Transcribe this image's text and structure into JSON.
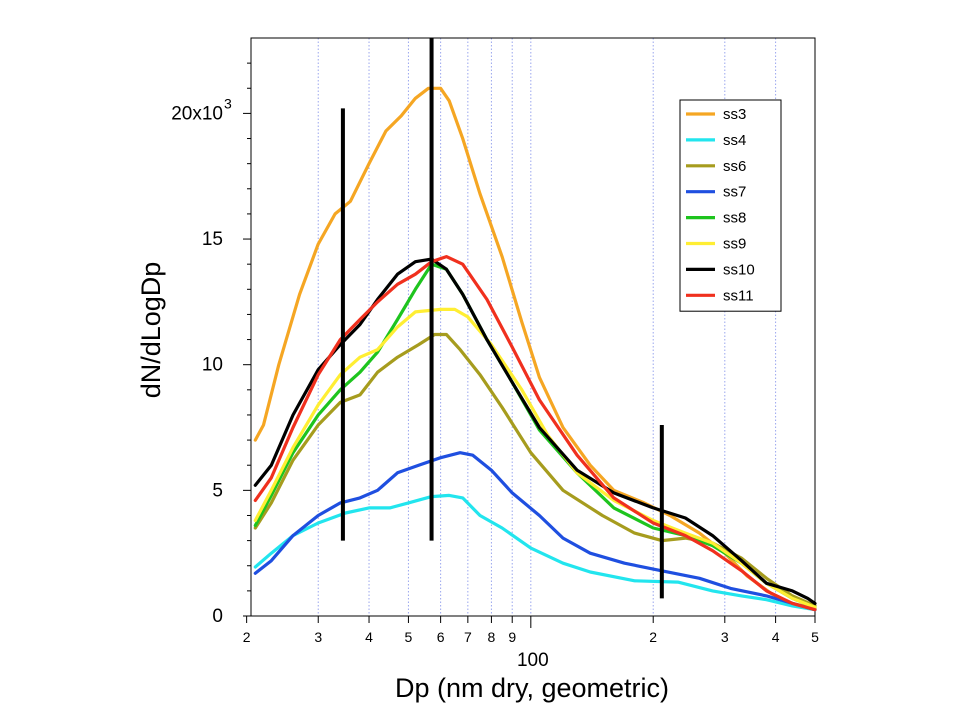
{
  "chart_data": {
    "type": "line",
    "xlabel": "Dp (nm dry, geometric)",
    "ylabel": "dN/dLogDp",
    "x_scale": "log",
    "xlim": [
      20.5,
      500
    ],
    "ylim": [
      0,
      23000
    ],
    "x_ticks": [
      {
        "value": 20,
        "label": "2"
      },
      {
        "value": 30,
        "label": "3"
      },
      {
        "value": 40,
        "label": "4"
      },
      {
        "value": 50,
        "label": "5"
      },
      {
        "value": 60,
        "label": "6"
      },
      {
        "value": 70,
        "label": "7"
      },
      {
        "value": 80,
        "label": "8"
      },
      {
        "value": 90,
        "label": "9"
      },
      {
        "value": 100,
        "label": ""
      },
      {
        "value": 200,
        "label": "2"
      },
      {
        "value": 300,
        "label": "3"
      },
      {
        "value": 400,
        "label": "4"
      },
      {
        "value": 500,
        "label": "5"
      }
    ],
    "x_decade_label": {
      "value": 100,
      "label": "100"
    },
    "y_ticks": [
      {
        "value": 0,
        "label": "0"
      },
      {
        "value": 5000,
        "label": "5"
      },
      {
        "value": 10000,
        "label": "10"
      },
      {
        "value": 15000,
        "label": "15"
      },
      {
        "value": 20000,
        "label": "20x10"
      }
    ],
    "y_exponent": "3",
    "legend_position": "top-right",
    "vertical_markers": [
      {
        "x": 34.5,
        "y_from": 3000,
        "y_to": 20200
      },
      {
        "x": 57,
        "y_from": 3000,
        "y_to": 23000
      },
      {
        "x": 210,
        "y_from": 700,
        "y_to": 7600
      }
    ],
    "series": [
      {
        "name": "ss3",
        "color": "#f5a623",
        "points": [
          [
            21,
            7000
          ],
          [
            22,
            7600
          ],
          [
            24,
            10000
          ],
          [
            27,
            12800
          ],
          [
            30,
            14800
          ],
          [
            33,
            16000
          ],
          [
            36,
            16500
          ],
          [
            40,
            18000
          ],
          [
            44,
            19300
          ],
          [
            48,
            19900
          ],
          [
            52,
            20600
          ],
          [
            56,
            21000
          ],
          [
            60,
            21000
          ],
          [
            63,
            20500
          ],
          [
            68,
            19000
          ],
          [
            75,
            16800
          ],
          [
            85,
            14300
          ],
          [
            95,
            11700
          ],
          [
            105,
            9500
          ],
          [
            120,
            7500
          ],
          [
            140,
            6000
          ],
          [
            160,
            5000
          ],
          [
            190,
            4500
          ],
          [
            220,
            4000
          ],
          [
            260,
            3300
          ],
          [
            300,
            2500
          ],
          [
            340,
            1600
          ],
          [
            390,
            900
          ],
          [
            440,
            500
          ],
          [
            500,
            300
          ]
        ]
      },
      {
        "name": "ss4",
        "color": "#22e5ee",
        "points": [
          [
            21,
            1950
          ],
          [
            23,
            2500
          ],
          [
            26,
            3200
          ],
          [
            30,
            3700
          ],
          [
            35,
            4100
          ],
          [
            40,
            4300
          ],
          [
            45,
            4300
          ],
          [
            50,
            4500
          ],
          [
            57,
            4750
          ],
          [
            63,
            4800
          ],
          [
            68,
            4700
          ],
          [
            75,
            4000
          ],
          [
            85,
            3500
          ],
          [
            100,
            2700
          ],
          [
            120,
            2100
          ],
          [
            140,
            1750
          ],
          [
            180,
            1400
          ],
          [
            230,
            1350
          ],
          [
            280,
            1000
          ],
          [
            330,
            800
          ],
          [
            380,
            650
          ],
          [
            440,
            400
          ],
          [
            500,
            250
          ]
        ]
      },
      {
        "name": "ss6",
        "color": "#a69c1e",
        "points": [
          [
            21,
            3500
          ],
          [
            23,
            4500
          ],
          [
            26,
            6200
          ],
          [
            30,
            7600
          ],
          [
            34,
            8500
          ],
          [
            38,
            8800
          ],
          [
            42,
            9700
          ],
          [
            47,
            10300
          ],
          [
            53,
            10800
          ],
          [
            58,
            11200
          ],
          [
            62,
            11200
          ],
          [
            67,
            10600
          ],
          [
            75,
            9600
          ],
          [
            85,
            8300
          ],
          [
            100,
            6500
          ],
          [
            120,
            5000
          ],
          [
            150,
            4000
          ],
          [
            180,
            3300
          ],
          [
            210,
            3000
          ],
          [
            240,
            3100
          ],
          [
            280,
            2900
          ],
          [
            330,
            2300
          ],
          [
            380,
            1500
          ],
          [
            440,
            800
          ],
          [
            500,
            400
          ]
        ]
      },
      {
        "name": "ss7",
        "color": "#1f4fe0",
        "points": [
          [
            21,
            1700
          ],
          [
            23,
            2200
          ],
          [
            26,
            3200
          ],
          [
            30,
            4000
          ],
          [
            34,
            4500
          ],
          [
            38,
            4700
          ],
          [
            42,
            5000
          ],
          [
            47,
            5700
          ],
          [
            53,
            6000
          ],
          [
            60,
            6300
          ],
          [
            67,
            6500
          ],
          [
            72,
            6400
          ],
          [
            80,
            5800
          ],
          [
            90,
            4900
          ],
          [
            105,
            4000
          ],
          [
            120,
            3100
          ],
          [
            140,
            2500
          ],
          [
            170,
            2100
          ],
          [
            210,
            1800
          ],
          [
            260,
            1500
          ],
          [
            310,
            1100
          ],
          [
            380,
            800
          ],
          [
            440,
            500
          ],
          [
            500,
            250
          ]
        ]
      },
      {
        "name": "ss8",
        "color": "#1ec41e",
        "points": [
          [
            21,
            3600
          ],
          [
            23,
            4800
          ],
          [
            26,
            6500
          ],
          [
            30,
            8000
          ],
          [
            34,
            9000
          ],
          [
            38,
            9700
          ],
          [
            42,
            10500
          ],
          [
            47,
            11800
          ],
          [
            52,
            13000
          ],
          [
            57,
            14000
          ],
          [
            62,
            13800
          ],
          [
            68,
            12800
          ],
          [
            78,
            11000
          ],
          [
            90,
            9300
          ],
          [
            105,
            7400
          ],
          [
            130,
            5700
          ],
          [
            160,
            4300
          ],
          [
            200,
            3500
          ],
          [
            240,
            3200
          ],
          [
            280,
            2800
          ],
          [
            330,
            2100
          ],
          [
            380,
            1300
          ],
          [
            440,
            700
          ],
          [
            500,
            350
          ]
        ]
      },
      {
        "name": "ss9",
        "color": "#ffee33",
        "points": [
          [
            21,
            3800
          ],
          [
            23,
            5000
          ],
          [
            26,
            6700
          ],
          [
            30,
            8400
          ],
          [
            34,
            9600
          ],
          [
            38,
            10300
          ],
          [
            42,
            10600
          ],
          [
            47,
            11500
          ],
          [
            52,
            12100
          ],
          [
            60,
            12200
          ],
          [
            65,
            12200
          ],
          [
            70,
            11900
          ],
          [
            80,
            10800
          ],
          [
            95,
            9000
          ],
          [
            110,
            7200
          ],
          [
            130,
            5700
          ],
          [
            160,
            4600
          ],
          [
            200,
            3800
          ],
          [
            240,
            3300
          ],
          [
            280,
            2900
          ],
          [
            330,
            2100
          ],
          [
            380,
            1300
          ],
          [
            440,
            700
          ],
          [
            500,
            350
          ]
        ]
      },
      {
        "name": "ss10",
        "color": "#000000",
        "points": [
          [
            21,
            5200
          ],
          [
            23,
            6000
          ],
          [
            26,
            8000
          ],
          [
            30,
            9800
          ],
          [
            34,
            10800
          ],
          [
            38,
            11600
          ],
          [
            42,
            12600
          ],
          [
            47,
            13600
          ],
          [
            52,
            14100
          ],
          [
            57,
            14200
          ],
          [
            62,
            13800
          ],
          [
            68,
            12800
          ],
          [
            78,
            11000
          ],
          [
            90,
            9300
          ],
          [
            105,
            7500
          ],
          [
            130,
            5800
          ],
          [
            160,
            4900
          ],
          [
            200,
            4300
          ],
          [
            240,
            3900
          ],
          [
            280,
            3200
          ],
          [
            330,
            2200
          ],
          [
            380,
            1300
          ],
          [
            440,
            1000
          ],
          [
            480,
            700
          ],
          [
            500,
            500
          ]
        ]
      },
      {
        "name": "ss11",
        "color": "#f0301e",
        "points": [
          [
            21,
            4600
          ],
          [
            23,
            5500
          ],
          [
            26,
            7500
          ],
          [
            30,
            9600
          ],
          [
            34,
            11000
          ],
          [
            38,
            11800
          ],
          [
            42,
            12500
          ],
          [
            47,
            13200
          ],
          [
            52,
            13600
          ],
          [
            57,
            14100
          ],
          [
            62,
            14300
          ],
          [
            68,
            14000
          ],
          [
            78,
            12600
          ],
          [
            90,
            10700
          ],
          [
            105,
            8600
          ],
          [
            130,
            6400
          ],
          [
            160,
            4700
          ],
          [
            200,
            3700
          ],
          [
            240,
            3200
          ],
          [
            280,
            2600
          ],
          [
            330,
            1800
          ],
          [
            380,
            1000
          ],
          [
            440,
            500
          ],
          [
            500,
            250
          ]
        ]
      }
    ]
  }
}
